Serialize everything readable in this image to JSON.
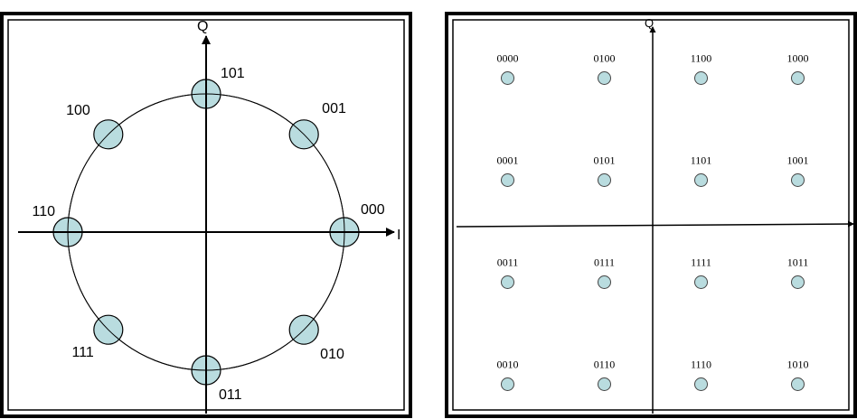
{
  "psk8": {
    "axis_i_label": "I",
    "axis_q_label": "Q",
    "points": [
      {
        "label": "000",
        "angle_deg": 0
      },
      {
        "label": "001",
        "angle_deg": 45
      },
      {
        "label": "101",
        "angle_deg": 90
      },
      {
        "label": "100",
        "angle_deg": 135
      },
      {
        "label": "110",
        "angle_deg": 180
      },
      {
        "label": "111",
        "angle_deg": 225
      },
      {
        "label": "011",
        "angle_deg": 270
      },
      {
        "label": "010",
        "angle_deg": 315
      }
    ],
    "point_color": "#b9dcdf"
  },
  "qam16": {
    "axis_q_label": "Q",
    "columns": [
      -3,
      -1,
      1,
      3
    ],
    "rows": [
      3,
      1,
      -1,
      -3
    ],
    "labels": [
      [
        "0000",
        "0100",
        "1100",
        "1000"
      ],
      [
        "0001",
        "0101",
        "1101",
        "1001"
      ],
      [
        "0011",
        "0111",
        "1111",
        "1011"
      ],
      [
        "0010",
        "0110",
        "1110",
        "1010"
      ]
    ],
    "point_color": "#b9dcdf"
  }
}
